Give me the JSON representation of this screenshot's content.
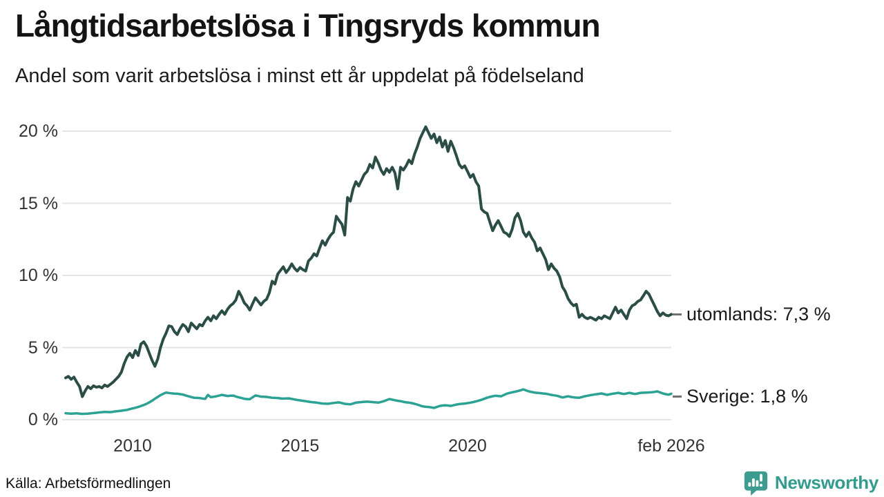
{
  "header": {
    "title": "Långtidsarbetslösa i Tingsryds kommun",
    "subtitle": "Andel som varit arbetslösa i minst ett år uppdelat på födelseland"
  },
  "footer": {
    "source": "Källa: Arbetsförmedlingen",
    "brand": "Newsworthy",
    "brand_icon": "newsworthy-chart-bubble-icon"
  },
  "colors": {
    "utomlands_line": "#2a4d44",
    "sverige_line": "#2aa294",
    "grid": "#e4e4e4",
    "brand_teal": "#3b9c8f",
    "axis_text": "#333333"
  },
  "chart_data": {
    "type": "line",
    "title": "Långtidsarbetslösa i Tingsryds kommun",
    "subtitle": "Andel som varit arbetslösa i minst ett år uppdelat på födelseland",
    "unit": "%",
    "grid": "horizontal",
    "legend_position": "end-of-line-labels",
    "xlim": [
      2008.0,
      2026.083
    ],
    "ylim": [
      0,
      21
    ],
    "x_ticks": [
      {
        "label": "2010",
        "value": 2010
      },
      {
        "label": "2015",
        "value": 2015
      },
      {
        "label": "2020",
        "value": 2020
      },
      {
        "label": "feb 2026",
        "value": 2026.083
      }
    ],
    "y_ticks": [
      {
        "label": "20 %",
        "value": 20
      },
      {
        "label": "15 %",
        "value": 15
      },
      {
        "label": "10 %",
        "value": 10
      },
      {
        "label": "5 %",
        "value": 5
      },
      {
        "label": "0 %",
        "value": 0
      }
    ],
    "series": [
      {
        "name": "utomlands",
        "end_label": "utomlands: 7,3 %",
        "last_value_text": "7,3 %",
        "color": "#2a4d44",
        "start_year": 2008.0,
        "step_months": 1,
        "values": [
          2.9,
          3.0,
          2.8,
          2.95,
          2.6,
          2.3,
          1.6,
          2.0,
          2.3,
          2.15,
          2.35,
          2.25,
          2.3,
          2.2,
          2.4,
          2.3,
          2.45,
          2.6,
          2.8,
          3.0,
          3.3,
          3.9,
          4.35,
          4.6,
          4.3,
          4.8,
          4.45,
          5.25,
          5.4,
          5.1,
          4.6,
          4.1,
          3.7,
          4.2,
          5.0,
          5.6,
          6.0,
          6.5,
          6.45,
          6.1,
          5.9,
          6.3,
          6.6,
          6.45,
          6.1,
          6.7,
          6.5,
          6.3,
          6.6,
          6.5,
          6.85,
          7.1,
          6.85,
          7.2,
          7.0,
          7.3,
          7.55,
          7.3,
          7.65,
          7.9,
          8.05,
          8.3,
          8.9,
          8.55,
          8.1,
          7.9,
          7.6,
          8.05,
          8.45,
          8.2,
          7.95,
          8.2,
          8.35,
          8.8,
          9.6,
          9.4,
          10.1,
          10.35,
          10.6,
          10.2,
          10.45,
          10.8,
          10.5,
          10.3,
          10.55,
          10.4,
          10.3,
          11.0,
          11.2,
          11.5,
          11.35,
          11.9,
          12.4,
          12.1,
          12.5,
          12.8,
          13.0,
          14.1,
          13.8,
          13.55,
          12.8,
          15.4,
          15.15,
          16.0,
          16.5,
          16.2,
          16.6,
          17.0,
          17.2,
          17.7,
          17.45,
          18.2,
          17.8,
          17.3,
          17.0,
          17.4,
          17.15,
          17.5,
          17.1,
          16.0,
          17.5,
          17.3,
          17.6,
          18.0,
          17.75,
          18.4,
          18.9,
          19.5,
          19.9,
          20.3,
          19.9,
          19.5,
          19.8,
          19.2,
          19.6,
          18.9,
          19.35,
          18.6,
          19.3,
          18.85,
          18.3,
          17.7,
          17.45,
          17.6,
          17.2,
          16.8,
          17.0,
          16.5,
          16.2,
          14.6,
          14.4,
          14.3,
          13.7,
          13.1,
          13.5,
          13.8,
          13.4,
          13.0,
          12.9,
          12.7,
          13.2,
          14.0,
          14.3,
          13.8,
          13.0,
          12.7,
          13.0,
          12.6,
          12.3,
          11.7,
          11.9,
          11.5,
          11.1,
          10.4,
          10.8,
          10.5,
          10.3,
          9.9,
          9.2,
          8.9,
          8.4,
          8.1,
          7.9,
          8.0,
          7.1,
          7.3,
          7.1,
          7.0,
          7.1,
          7.0,
          6.9,
          7.1,
          7.0,
          7.2,
          7.1,
          7.0,
          7.4,
          7.8,
          7.4,
          7.6,
          7.3,
          7.0,
          7.6,
          7.9,
          8.0,
          8.2,
          8.3,
          8.6,
          8.9,
          8.7,
          8.3,
          7.9,
          7.5,
          7.2,
          7.4,
          7.25,
          7.2,
          7.3
        ]
      },
      {
        "name": "Sverige",
        "end_label": "Sverige: 1,8 %",
        "last_value_text": "1,8 %",
        "color": "#2aa294",
        "start_year": 2008.0,
        "step_months": 1,
        "values": [
          0.45,
          0.43,
          0.42,
          0.43,
          0.44,
          0.42,
          0.4,
          0.41,
          0.42,
          0.44,
          0.46,
          0.48,
          0.5,
          0.52,
          0.54,
          0.53,
          0.52,
          0.55,
          0.58,
          0.6,
          0.62,
          0.65,
          0.68,
          0.73,
          0.78,
          0.83,
          0.88,
          0.95,
          1.02,
          1.1,
          1.2,
          1.32,
          1.45,
          1.58,
          1.7,
          1.8,
          1.88,
          1.85,
          1.83,
          1.81,
          1.8,
          1.77,
          1.74,
          1.68,
          1.62,
          1.57,
          1.52,
          1.51,
          1.5,
          1.47,
          1.44,
          1.72,
          1.56,
          1.59,
          1.62,
          1.67,
          1.72,
          1.68,
          1.64,
          1.66,
          1.67,
          1.61,
          1.55,
          1.5,
          1.45,
          1.43,
          1.42,
          1.55,
          1.68,
          1.64,
          1.6,
          1.59,
          1.58,
          1.55,
          1.52,
          1.51,
          1.5,
          1.48,
          1.46,
          1.47,
          1.48,
          1.44,
          1.4,
          1.37,
          1.34,
          1.31,
          1.28,
          1.25,
          1.22,
          1.2,
          1.18,
          1.15,
          1.12,
          1.11,
          1.1,
          1.13,
          1.16,
          1.18,
          1.2,
          1.15,
          1.1,
          1.08,
          1.06,
          1.12,
          1.18,
          1.2,
          1.22,
          1.24,
          1.25,
          1.24,
          1.22,
          1.2,
          1.18,
          1.23,
          1.28,
          1.36,
          1.43,
          1.39,
          1.35,
          1.31,
          1.28,
          1.24,
          1.2,
          1.18,
          1.15,
          1.1,
          1.05,
          0.98,
          0.92,
          0.9,
          0.88,
          0.85,
          0.82,
          0.88,
          0.95,
          0.98,
          1.0,
          0.98,
          0.95,
          1.0,
          1.05,
          1.08,
          1.1,
          1.12,
          1.15,
          1.18,
          1.22,
          1.27,
          1.32,
          1.38,
          1.45,
          1.52,
          1.58,
          1.62,
          1.66,
          1.64,
          1.62,
          1.71,
          1.8,
          1.85,
          1.9,
          1.94,
          1.98,
          2.04,
          2.1,
          2.03,
          1.96,
          1.92,
          1.88,
          1.86,
          1.84,
          1.82,
          1.8,
          1.76,
          1.72,
          1.69,
          1.66,
          1.6,
          1.54,
          1.58,
          1.62,
          1.58,
          1.55,
          1.53,
          1.52,
          1.57,
          1.62,
          1.66,
          1.7,
          1.73,
          1.76,
          1.79,
          1.82,
          1.77,
          1.72,
          1.76,
          1.8,
          1.83,
          1.86,
          1.82,
          1.78,
          1.82,
          1.86,
          1.82,
          1.78,
          1.82,
          1.86,
          1.87,
          1.88,
          1.89,
          1.9,
          1.93,
          1.96,
          1.89,
          1.82,
          1.77,
          1.73,
          1.8
        ]
      }
    ]
  }
}
